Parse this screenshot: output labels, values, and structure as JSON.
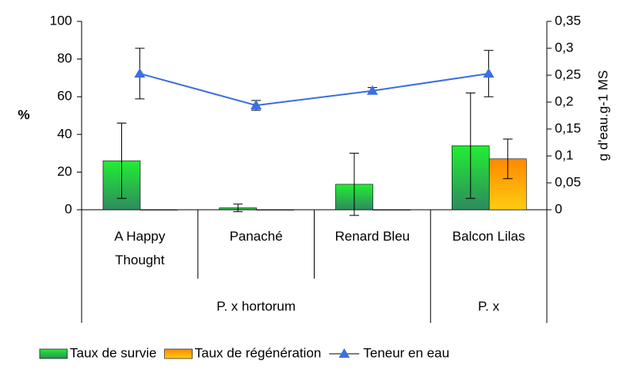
{
  "chart_data": {
    "type": "bar",
    "categories": [
      "A Happy Thought",
      "Panaché",
      "Renard Bleu",
      "Balcon Lilas"
    ],
    "groups": [
      {
        "label": "P. x hortorum",
        "span": 3
      },
      {
        "label": "P. x",
        "span": 1
      }
    ],
    "series": [
      {
        "name": "Taux de survie",
        "type": "bar",
        "color": "#22dd44",
        "values": [
          26,
          1,
          13.5,
          34
        ],
        "errors": [
          20,
          2,
          16.5,
          28
        ]
      },
      {
        "name": "Taux de régénération",
        "type": "bar",
        "color": "#ff9900",
        "values": [
          0,
          0,
          0,
          27
        ],
        "errors": [
          0,
          0,
          0,
          10.5
        ]
      },
      {
        "name": "Teneur en eau",
        "type": "line",
        "axis": "y2",
        "color": "#3c6fe0",
        "values": [
          0.253,
          0.194,
          0.221,
          0.253
        ],
        "errors": [
          0.047,
          0.009,
          0.006,
          0.043
        ]
      }
    ],
    "ylabel": "%",
    "y2label": "g d'eau.g-1 MS",
    "ylim": [
      0,
      100
    ],
    "yticks": [
      0,
      20,
      40,
      60,
      80,
      100
    ],
    "y2lim": [
      0,
      0.35
    ],
    "y2ticks": [
      0,
      {
        "value": 0.05,
        "label": "0,05"
      },
      {
        "value": 0.1,
        "label": "0,1"
      },
      {
        "value": 0.15,
        "label": "0,15"
      },
      {
        "value": 0.2,
        "label": "0,2"
      },
      {
        "value": 0.25,
        "label": "0,25"
      },
      {
        "value": 0.3,
        "label": "0,3"
      },
      {
        "value": 0.35,
        "label": "0,35"
      }
    ],
    "grid": false,
    "legend": "bottom"
  }
}
